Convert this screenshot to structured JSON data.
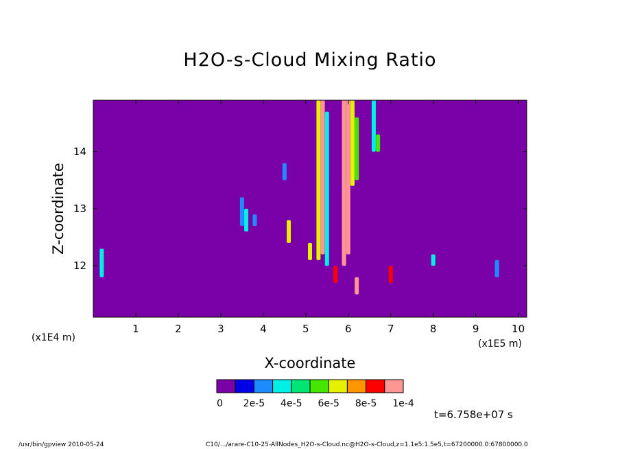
{
  "chart_data": {
    "type": "heatmap",
    "title": "H2O-s-Cloud Mixing Ratio",
    "xlabel": "X-coordinate",
    "ylabel": "Z-coordinate",
    "x_scale_left": "(x1E4 m)",
    "x_scale_right": "(x1E5 m)",
    "x_ticks": [
      "1",
      "2",
      "3",
      "4",
      "5",
      "6",
      "7",
      "8",
      "9",
      "10"
    ],
    "y_ticks": [
      "12",
      "13",
      "14"
    ],
    "xlim": [
      0,
      10.2
    ],
    "ylim": [
      11.1,
      14.9
    ],
    "background_value": 0,
    "colorbar": {
      "colors": [
        "#7a00a8",
        "#0000e6",
        "#1e8cff",
        "#00f0e6",
        "#00e676",
        "#46e600",
        "#e6f000",
        "#ff9600",
        "#ff0000",
        "#ff9696"
      ],
      "labels": [
        "0",
        "2e-5",
        "4e-5",
        "6e-5",
        "8e-5",
        "1e-4"
      ]
    },
    "features": [
      {
        "x": 5.3,
        "z_min": 12.1,
        "z_max": 14.9,
        "value": 7e-05
      },
      {
        "x": 5.4,
        "z_min": 12.2,
        "z_max": 14.9,
        "value": 9e-05
      },
      {
        "x": 5.5,
        "z_min": 12.0,
        "z_max": 14.7,
        "value": 3e-05
      },
      {
        "x": 5.9,
        "z_min": 12.0,
        "z_max": 14.9,
        "value": 0.0001
      },
      {
        "x": 6.0,
        "z_min": 12.2,
        "z_max": 14.9,
        "value": 9e-05
      },
      {
        "x": 6.1,
        "z_min": 13.4,
        "z_max": 14.9,
        "value": 6e-05
      },
      {
        "x": 6.2,
        "z_min": 13.5,
        "z_max": 14.6,
        "value": 5e-05
      },
      {
        "x": 6.6,
        "z_min": 14.0,
        "z_max": 14.9,
        "value": 3e-05
      },
      {
        "x": 6.7,
        "z_min": 14.0,
        "z_max": 14.3,
        "value": 5e-05
      },
      {
        "x": 0.2,
        "z_min": 11.8,
        "z_max": 12.3,
        "value": 3e-05
      },
      {
        "x": 3.5,
        "z_min": 12.7,
        "z_max": 13.2,
        "value": 2e-05
      },
      {
        "x": 3.6,
        "z_min": 12.6,
        "z_max": 13.0,
        "value": 3e-05
      },
      {
        "x": 3.8,
        "z_min": 12.7,
        "z_max": 12.9,
        "value": 2e-05
      },
      {
        "x": 4.5,
        "z_min": 13.5,
        "z_max": 13.8,
        "value": 2e-05
      },
      {
        "x": 4.6,
        "z_min": 12.4,
        "z_max": 12.8,
        "value": 7e-05
      },
      {
        "x": 5.1,
        "z_min": 12.1,
        "z_max": 12.4,
        "value": 6e-05
      },
      {
        "x": 5.7,
        "z_min": 11.7,
        "z_max": 12.0,
        "value": 8e-05
      },
      {
        "x": 6.2,
        "z_min": 11.5,
        "z_max": 11.8,
        "value": 0.0001
      },
      {
        "x": 7.0,
        "z_min": 11.7,
        "z_max": 12.0,
        "value": 8e-05
      },
      {
        "x": 8.0,
        "z_min": 12.0,
        "z_max": 12.2,
        "value": 3e-05
      },
      {
        "x": 9.5,
        "z_min": 11.8,
        "z_max": 12.1,
        "value": 2e-05
      }
    ]
  },
  "time_label": "t=6.758e+07 s",
  "footer_left": "/usr/bin/gpview   2010-05-24",
  "footer_right": "C10/.../arare-C10-25-AllNodes_H2O-s-Cloud.nc@H2O-s-Cloud,z=1.1e5:1.5e5,t=67200000.0:67800000.0"
}
